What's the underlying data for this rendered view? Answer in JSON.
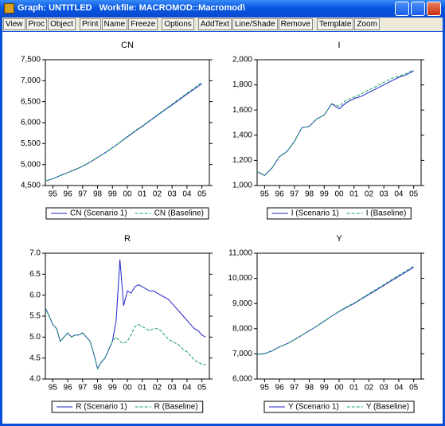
{
  "window": {
    "title": "Graph: UNTITLED   Workfile: MACROMOD::Macromod\\"
  },
  "toolbar": [
    "View",
    "Proc",
    "Object",
    "Print",
    "Name",
    "Freeze",
    "Options",
    "AddText",
    "Line/Shade",
    "Remove",
    "Template",
    "Zoom"
  ],
  "chart_data": [
    {
      "type": "line",
      "title": "CN",
      "x": [
        1995,
        1995.5,
        1996,
        1996.5,
        1997,
        1997.5,
        1998,
        1998.5,
        1999,
        1999.5,
        2000,
        2000.5,
        2001,
        2001.5,
        2002,
        2002.5,
        2003,
        2003.5,
        2004,
        2004.5,
        2005,
        2005.5
      ],
      "series": [
        {
          "name": "CN (Scenario 1)",
          "color": "#2020c8",
          "values": [
            4610,
            4660,
            4740,
            4810,
            4880,
            4960,
            5060,
            5170,
            5280,
            5400,
            5530,
            5660,
            5790,
            5910,
            6040,
            6170,
            6300,
            6420,
            6550,
            6680,
            6800,
            6930
          ]
        },
        {
          "name": "CN (Baseline)",
          "color": "#10a060",
          "dashed": true,
          "values": [
            4610,
            4660,
            4740,
            4810,
            4880,
            4960,
            5060,
            5170,
            5280,
            5400,
            5530,
            5670,
            5800,
            5920,
            6050,
            6180,
            6310,
            6440,
            6570,
            6700,
            6830,
            6960
          ]
        }
      ],
      "xlim": [
        1995,
        2006
      ],
      "xticks": [
        {
          "value": 1995.5,
          "label": "95"
        },
        {
          "value": 1996.5,
          "label": "96"
        },
        {
          "value": 1997.5,
          "label": "97"
        },
        {
          "value": 1998.5,
          "label": "98"
        },
        {
          "value": 1999.5,
          "label": "99"
        },
        {
          "value": 2000.5,
          "label": "00"
        },
        {
          "value": 2001.5,
          "label": "01"
        },
        {
          "value": 2002.5,
          "label": "02"
        },
        {
          "value": 2003.5,
          "label": "03"
        },
        {
          "value": 2004.5,
          "label": "04"
        },
        {
          "value": 2005.5,
          "label": "05"
        }
      ],
      "ylim": [
        4500,
        7500
      ],
      "yticks": [
        {
          "value": 4500,
          "label": "4,500"
        },
        {
          "value": 5000,
          "label": "5,000"
        },
        {
          "value": 5500,
          "label": "5,500"
        },
        {
          "value": 6000,
          "label": "6,000"
        },
        {
          "value": 6500,
          "label": "6,500"
        },
        {
          "value": 7000,
          "label": "7,000"
        },
        {
          "value": 7500,
          "label": "7,500"
        }
      ]
    },
    {
      "type": "line",
      "title": "I",
      "x": [
        1995,
        1995.5,
        1996,
        1996.5,
        1997,
        1997.5,
        1998,
        1998.5,
        1999,
        1999.5,
        2000,
        2000.5,
        2001,
        2001.5,
        2002,
        2002.5,
        2003,
        2003.5,
        2004,
        2004.5,
        2005,
        2005.5
      ],
      "series": [
        {
          "name": "I (Scenario 1)",
          "color": "#2020c8",
          "values": [
            1110,
            1080,
            1140,
            1230,
            1270,
            1350,
            1460,
            1470,
            1530,
            1560,
            1650,
            1610,
            1660,
            1690,
            1710,
            1740,
            1770,
            1800,
            1830,
            1860,
            1880,
            1910
          ]
        },
        {
          "name": "I (Baseline)",
          "color": "#10a060",
          "dashed": true,
          "values": [
            1110,
            1080,
            1140,
            1230,
            1270,
            1350,
            1460,
            1470,
            1530,
            1560,
            1650,
            1630,
            1680,
            1700,
            1730,
            1760,
            1790,
            1820,
            1850,
            1870,
            1890,
            1920
          ]
        }
      ],
      "xlim": [
        1995,
        2006
      ],
      "xticks": [
        {
          "value": 1995.5,
          "label": "95"
        },
        {
          "value": 1996.5,
          "label": "96"
        },
        {
          "value": 1997.5,
          "label": "97"
        },
        {
          "value": 1998.5,
          "label": "98"
        },
        {
          "value": 1999.5,
          "label": "99"
        },
        {
          "value": 2000.5,
          "label": "00"
        },
        {
          "value": 2001.5,
          "label": "01"
        },
        {
          "value": 2002.5,
          "label": "02"
        },
        {
          "value": 2003.5,
          "label": "03"
        },
        {
          "value": 2004.5,
          "label": "04"
        },
        {
          "value": 2005.5,
          "label": "05"
        }
      ],
      "ylim": [
        1000,
        2000
      ],
      "yticks": [
        {
          "value": 1000,
          "label": "1,000"
        },
        {
          "value": 1200,
          "label": "1,200"
        },
        {
          "value": 1400,
          "label": "1,400"
        },
        {
          "value": 1600,
          "label": "1,600"
        },
        {
          "value": 1800,
          "label": "1,800"
        },
        {
          "value": 2000,
          "label": "2,000"
        }
      ]
    },
    {
      "type": "line",
      "title": "R",
      "x": [
        1995,
        1995.25,
        1995.5,
        1995.75,
        1996,
        1996.25,
        1996.5,
        1996.75,
        1997,
        1997.25,
        1997.5,
        1997.75,
        1998,
        1998.25,
        1998.5,
        1998.75,
        1999,
        1999.25,
        1999.5,
        1999.75,
        2000,
        2000.25,
        2000.5,
        2000.75,
        2001,
        2001.25,
        2001.5,
        2001.75,
        2002,
        2002.25,
        2002.5,
        2002.75,
        2003,
        2003.25,
        2003.5,
        2003.75,
        2004,
        2004.25,
        2004.5,
        2004.75,
        2005,
        2005.25,
        2005.5,
        2005.75
      ],
      "series": [
        {
          "name": "R (Scenario 1)",
          "color": "#2020c8",
          "values": [
            5.7,
            5.5,
            5.3,
            5.2,
            4.9,
            5.0,
            5.1,
            5.0,
            5.05,
            5.05,
            5.1,
            5.0,
            4.9,
            4.6,
            4.25,
            4.4,
            4.5,
            4.7,
            4.9,
            5.4,
            6.85,
            5.75,
            6.1,
            6.05,
            6.2,
            6.25,
            6.2,
            6.15,
            6.1,
            6.1,
            6.05,
            6.0,
            5.95,
            5.9,
            5.8,
            5.7,
            5.6,
            5.5,
            5.4,
            5.3,
            5.2,
            5.15,
            5.05,
            5.0
          ]
        },
        {
          "name": "R (Baseline)",
          "color": "#10a060",
          "dashed": true,
          "values": [
            5.7,
            5.5,
            5.3,
            5.2,
            4.9,
            5.0,
            5.1,
            5.0,
            5.05,
            5.05,
            5.1,
            5.0,
            4.9,
            4.6,
            4.25,
            4.4,
            4.5,
            4.7,
            4.9,
            5.0,
            4.9,
            4.85,
            4.9,
            5.05,
            5.25,
            5.3,
            5.25,
            5.2,
            5.15,
            5.2,
            5.2,
            5.15,
            5.05,
            4.95,
            4.9,
            4.85,
            4.8,
            4.7,
            4.65,
            4.55,
            4.45,
            4.4,
            4.35,
            4.35
          ]
        }
      ],
      "xlim": [
        1995,
        2006
      ],
      "xticks": [
        {
          "value": 1995.5,
          "label": "95"
        },
        {
          "value": 1996.5,
          "label": "96"
        },
        {
          "value": 1997.5,
          "label": "97"
        },
        {
          "value": 1998.5,
          "label": "98"
        },
        {
          "value": 1999.5,
          "label": "99"
        },
        {
          "value": 2000.5,
          "label": "00"
        },
        {
          "value": 2001.5,
          "label": "01"
        },
        {
          "value": 2002.5,
          "label": "02"
        },
        {
          "value": 2003.5,
          "label": "03"
        },
        {
          "value": 2004.5,
          "label": "04"
        },
        {
          "value": 2005.5,
          "label": "05"
        }
      ],
      "ylim": [
        4,
        7
      ],
      "yticks": [
        {
          "value": 4,
          "label": "4.0"
        },
        4.5,
        {
          "value": 5,
          "label": "5.0"
        },
        5.5,
        {
          "value": 6,
          "label": "6.0"
        },
        6.5,
        {
          "value": 7,
          "label": "7.0"
        }
      ]
    },
    {
      "type": "line",
      "title": "Y",
      "x": [
        1995,
        1995.5,
        1996,
        1996.5,
        1997,
        1997.5,
        1998,
        1998.5,
        1999,
        1999.5,
        2000,
        2000.5,
        2001,
        2001.5,
        2002,
        2002.5,
        2003,
        2003.5,
        2004,
        2004.5,
        2005,
        2005.5
      ],
      "series": [
        {
          "name": "Y (Scenario 1)",
          "color": "#2020c8",
          "values": [
            6980,
            7010,
            7120,
            7280,
            7400,
            7560,
            7740,
            7920,
            8100,
            8300,
            8500,
            8680,
            8850,
            9000,
            9180,
            9360,
            9540,
            9720,
            9900,
            10080,
            10260,
            10440
          ]
        },
        {
          "name": "Y (Baseline)",
          "color": "#10a060",
          "dashed": true,
          "values": [
            6980,
            7010,
            7120,
            7280,
            7400,
            7560,
            7740,
            7920,
            8100,
            8300,
            8500,
            8690,
            8870,
            9020,
            9200,
            9390,
            9570,
            9750,
            9940,
            10120,
            10300,
            10480
          ]
        }
      ],
      "xlim": [
        1995,
        2006
      ],
      "xticks": [
        {
          "value": 1995.5,
          "label": "95"
        },
        {
          "value": 1996.5,
          "label": "96"
        },
        {
          "value": 1997.5,
          "label": "97"
        },
        {
          "value": 1998.5,
          "label": "98"
        },
        {
          "value": 1999.5,
          "label": "99"
        },
        {
          "value": 2000.5,
          "label": "00"
        },
        {
          "value": 2001.5,
          "label": "01"
        },
        {
          "value": 2002.5,
          "label": "02"
        },
        {
          "value": 2003.5,
          "label": "03"
        },
        {
          "value": 2004.5,
          "label": "04"
        },
        {
          "value": 2005.5,
          "label": "05"
        }
      ],
      "ylim": [
        6000,
        11000
      ],
      "yticks": [
        {
          "value": 6000,
          "label": "6,000"
        },
        {
          "value": 7000,
          "label": "7,000"
        },
        {
          "value": 8000,
          "label": "8,000"
        },
        {
          "value": 9000,
          "label": "9,000"
        },
        {
          "value": 10000,
          "label": "10,000"
        },
        {
          "value": 11000,
          "label": "11,000"
        }
      ]
    }
  ]
}
